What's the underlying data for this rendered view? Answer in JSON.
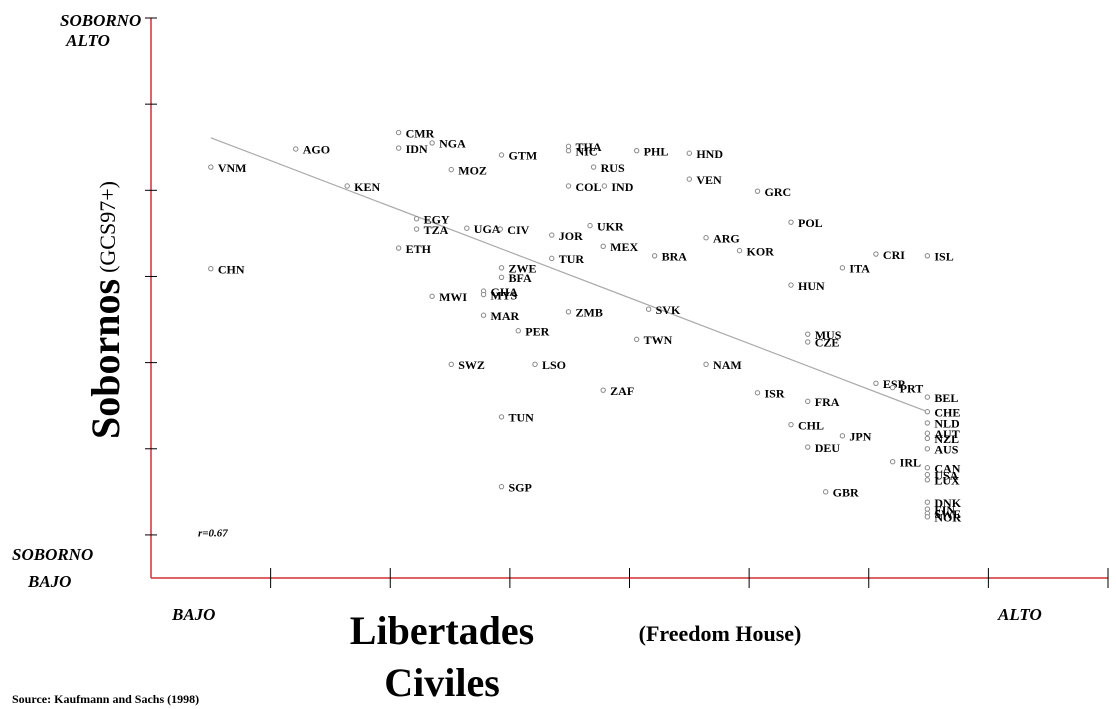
{
  "chart_data": {
    "type": "scatter",
    "y_label_main": "Sobornos",
    "y_label_sub": "(GCS97+)",
    "x_label_lines": [
      "Libertades",
      "Civiles"
    ],
    "x_label_note": "(Freedom House)",
    "y_high_lines": [
      "SOBORNO",
      "ALTO"
    ],
    "y_low_lines": [
      "SOBORNO",
      "BAJO"
    ],
    "x_low": "BAJO",
    "x_high": "ALTO",
    "annotation": "r=0.67",
    "source": "Source:  Kaufmann and Sachs (1998)",
    "axis_color": "#d03030",
    "marker_color": "#888888",
    "xlim": [
      0,
      8
    ],
    "ylim": [
      0.5,
      7
    ],
    "xticks": [
      1,
      2,
      3,
      4,
      5,
      6,
      7,
      8
    ],
    "yticks": [
      1,
      2,
      3,
      4,
      5,
      6,
      7
    ],
    "series": [
      {
        "name": "countries",
        "labels": [
          "VNM",
          "CHN",
          "AGO",
          "KEN",
          "CMR",
          "IDN",
          "NGA",
          "MOZ",
          "EGY",
          "TZA",
          "ETH",
          "UGA",
          "CIV",
          "GTM",
          "THA",
          "NIC",
          "RUS",
          "COL",
          "IND",
          "PHL",
          "HND",
          "VEN",
          "GRC",
          "POL",
          "UKR",
          "JOR",
          "MEX",
          "TUR",
          "BRA",
          "ARG",
          "KOR",
          "CRI",
          "ITA",
          "ISL",
          "HUN",
          "ZWE",
          "BFA",
          "MWI",
          "GHA",
          "MYS",
          "MAR",
          "ZMB",
          "SVK",
          "PER",
          "TWN",
          "MUS",
          "CZE",
          "SWZ",
          "LSO",
          "NAM",
          "ESP",
          "PRT",
          "BEL",
          "ZAF",
          "ISR",
          "FRA",
          "TUN",
          "CHE",
          "CHL",
          "NLD",
          "JPN",
          "AUT",
          "NZL",
          "DEU",
          "AUS",
          "IRL",
          "CAN",
          "USA",
          "SGP",
          "GBR",
          "LUX",
          "DNK",
          "FIN",
          "SWE",
          "NOR"
        ],
        "x": [
          0.5,
          0.5,
          1.21,
          1.64,
          2.07,
          2.07,
          2.35,
          2.51,
          2.22,
          2.22,
          2.07,
          2.64,
          2.92,
          2.93,
          3.49,
          3.49,
          3.7,
          3.49,
          3.79,
          4.06,
          4.5,
          4.5,
          5.07,
          5.35,
          3.67,
          3.35,
          3.78,
          3.35,
          4.21,
          4.64,
          4.92,
          6.06,
          5.78,
          6.49,
          5.35,
          2.93,
          2.93,
          2.35,
          2.78,
          2.78,
          2.78,
          3.49,
          4.16,
          3.07,
          4.06,
          5.49,
          5.49,
          2.51,
          3.21,
          4.64,
          6.06,
          6.2,
          6.49,
          3.78,
          5.07,
          5.49,
          2.93,
          6.49,
          5.35,
          6.49,
          5.78,
          6.49,
          6.49,
          5.49,
          6.49,
          6.2,
          6.49,
          6.49,
          2.93,
          5.64,
          6.49,
          6.49,
          6.49,
          6.49,
          6.49
        ],
        "values": [
          5.27,
          4.09,
          5.48,
          5.05,
          5.67,
          5.49,
          5.55,
          5.24,
          4.67,
          4.55,
          4.33,
          4.56,
          4.55,
          5.41,
          5.51,
          5.46,
          5.27,
          5.05,
          5.05,
          5.46,
          5.43,
          5.13,
          4.99,
          4.63,
          4.59,
          4.48,
          4.35,
          4.21,
          4.24,
          4.45,
          4.3,
          4.26,
          4.1,
          4.24,
          3.9,
          4.1,
          3.99,
          3.77,
          3.83,
          3.79,
          3.55,
          3.59,
          3.62,
          3.37,
          3.27,
          3.33,
          3.24,
          2.98,
          2.98,
          2.98,
          2.76,
          2.71,
          2.6,
          2.68,
          2.65,
          2.55,
          2.37,
          2.43,
          2.28,
          2.3,
          2.15,
          2.18,
          2.12,
          2.02,
          2.0,
          1.85,
          1.78,
          1.7,
          1.56,
          1.5,
          1.64,
          1.38,
          1.3,
          1.25,
          1.21
        ]
      }
    ],
    "trend": {
      "color": "#aaaaaa",
      "x": [
        0.5,
        6.49
      ],
      "values": [
        5.61,
        2.43
      ]
    }
  }
}
